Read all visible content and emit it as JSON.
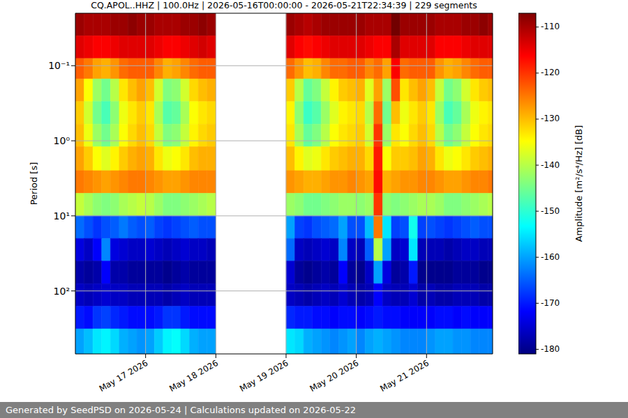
{
  "chart_data": {
    "type": "heatmap",
    "title": "CQ.APOL..HHZ | 100.0Hz | 2026-05-16T00:00:00 - 2026-05-21T22:34:39 | 229 segments",
    "y_label": "Period [s]",
    "log": "y",
    "grid": true,
    "xlim": [
      0,
      142.58
    ],
    "ylim": [
      0.02,
      690
    ],
    "xticks": [
      {
        "value": 24,
        "label": "May 17 2026"
      },
      {
        "value": 48,
        "label": "May 18 2026"
      },
      {
        "value": 72,
        "label": "May 19 2026"
      },
      {
        "value": 96,
        "label": "May 20 2026"
      },
      {
        "value": 120,
        "label": "May 21 2026"
      }
    ],
    "yticks": [
      {
        "value": 0.1,
        "label": "10⁻¹"
      },
      {
        "value": 1,
        "label": "10⁰"
      },
      {
        "value": 10,
        "label": "10¹"
      },
      {
        "value": 100,
        "label": "10²"
      }
    ],
    "x": [
      0,
      3,
      6,
      9,
      12,
      15,
      18,
      21,
      24,
      27,
      30,
      33,
      36,
      39,
      42,
      45,
      48,
      51,
      54,
      57,
      60,
      63,
      66,
      69,
      72,
      75,
      78,
      81,
      84,
      87,
      90,
      93,
      96,
      99,
      102,
      105,
      108,
      111,
      114,
      117,
      120,
      123,
      126,
      129,
      132,
      135,
      138,
      141
    ],
    "y_bins": [
      0.02,
      0.04,
      0.08,
      0.15,
      0.3,
      0.6,
      1.2,
      2.5,
      5,
      10,
      20,
      40,
      80,
      160,
      320,
      690
    ],
    "z": [
      [
        -109,
        -110,
        -110,
        -110,
        -109,
        -109,
        -108,
        -109,
        -109,
        -110,
        -110,
        -110,
        -109,
        -109,
        -108,
        -109,
        null,
        null,
        null,
        null,
        null,
        null,
        null,
        null,
        -109,
        -110,
        -111,
        -110,
        -109,
        -109,
        -109,
        -109,
        -109,
        -110,
        -110,
        -110,
        -106,
        -109,
        -109,
        -109,
        -109,
        -110,
        -110,
        -110,
        -109,
        -109,
        -108,
        -109
      ],
      [
        -114,
        -115,
        -116,
        -116,
        -115,
        -114,
        -114,
        -114,
        -114,
        -115,
        -116,
        -116,
        -115,
        -114,
        -113,
        -114,
        null,
        null,
        null,
        null,
        null,
        null,
        null,
        null,
        -114,
        -116,
        -117,
        -116,
        -115,
        -114,
        -114,
        -114,
        -114,
        -115,
        -116,
        -116,
        -110,
        -114,
        -114,
        -114,
        -114,
        -116,
        -116,
        -116,
        -115,
        -114,
        -114,
        -114
      ],
      [
        -123,
        -125,
        -128,
        -129,
        -127,
        -124,
        -123,
        -123,
        -123,
        -126,
        -129,
        -128,
        -126,
        -124,
        -123,
        -123,
        null,
        null,
        null,
        null,
        null,
        null,
        null,
        null,
        -124,
        -127,
        -130,
        -129,
        -126,
        -124,
        -124,
        -123,
        -123,
        -126,
        -124,
        -128,
        -116,
        -124,
        -123,
        -123,
        -123,
        -127,
        -129,
        -128,
        -126,
        -124,
        -123,
        -123
      ],
      [
        -128,
        -135,
        -142,
        -145,
        -140,
        -133,
        -130,
        -128,
        -130,
        -138,
        -144,
        -143,
        -138,
        -132,
        -130,
        -129,
        null,
        null,
        null,
        null,
        null,
        null,
        null,
        null,
        -131,
        -140,
        -146,
        -144,
        -139,
        -134,
        -131,
        -130,
        -129,
        -137,
        -128,
        -142,
        -122,
        -133,
        -130,
        -128,
        -130,
        -139,
        -145,
        -143,
        -138,
        -133,
        -131,
        -130
      ],
      [
        -131,
        -138,
        -145,
        -148,
        -143,
        -136,
        -133,
        -131,
        -133,
        -141,
        -147,
        -146,
        -141,
        -135,
        -133,
        -132,
        null,
        null,
        null,
        null,
        null,
        null,
        null,
        null,
        -134,
        -143,
        -149,
        -147,
        -142,
        -137,
        -134,
        -133,
        -132,
        -140,
        -124,
        -145,
        -130,
        -136,
        -133,
        -131,
        -133,
        -142,
        -148,
        -146,
        -141,
        -136,
        -134,
        -133
      ],
      [
        -130,
        -136,
        -142,
        -145,
        -141,
        -135,
        -132,
        -130,
        -132,
        -139,
        -144,
        -143,
        -139,
        -134,
        -132,
        -131,
        null,
        null,
        null,
        null,
        null,
        null,
        null,
        null,
        -133,
        -141,
        -146,
        -144,
        -140,
        -135,
        -133,
        -132,
        -131,
        -138,
        -120,
        -142,
        -133,
        -135,
        -132,
        -130,
        -132,
        -140,
        -145,
        -143,
        -139,
        -135,
        -133,
        -132
      ],
      [
        -128,
        -131,
        -135,
        -137,
        -134,
        -131,
        -129,
        -128,
        -129,
        -133,
        -136,
        -135,
        -133,
        -130,
        -129,
        -129,
        null,
        null,
        null,
        null,
        null,
        null,
        null,
        null,
        -130,
        -134,
        -137,
        -136,
        -133,
        -131,
        -130,
        -129,
        -129,
        -132,
        -118,
        -135,
        -131,
        -131,
        -130,
        -128,
        -129,
        -133,
        -136,
        -135,
        -133,
        -131,
        -130,
        -129
      ],
      [
        -125,
        -126,
        -127,
        -128,
        -127,
        -126,
        -125,
        -125,
        -126,
        -127,
        -128,
        -128,
        -127,
        -126,
        -126,
        -126,
        null,
        null,
        null,
        null,
        null,
        null,
        null,
        null,
        -127,
        -128,
        -129,
        -129,
        -128,
        -127,
        -127,
        -126,
        -127,
        -128,
        -117,
        -129,
        -128,
        -127,
        -127,
        -126,
        -126,
        -127,
        -128,
        -128,
        -127,
        -126,
        -126,
        -125
      ],
      [
        -139,
        -141,
        -143,
        -144,
        -143,
        -141,
        -140,
        -139,
        -140,
        -142,
        -144,
        -144,
        -143,
        -142,
        -141,
        -140,
        null,
        null,
        null,
        null,
        null,
        null,
        null,
        null,
        -142,
        -143,
        -145,
        -145,
        -144,
        -143,
        -142,
        -142,
        -143,
        -142,
        -120,
        -143,
        -144,
        -143,
        -142,
        -141,
        -141,
        -142,
        -144,
        -144,
        -143,
        -142,
        -141,
        -140
      ],
      [
        -164,
        -166,
        -168,
        -166,
        -165,
        -163,
        -165,
        -166,
        -165,
        -167,
        -168,
        -167,
        -166,
        -165,
        -166,
        -166,
        null,
        null,
        null,
        null,
        null,
        null,
        null,
        null,
        -160,
        -167,
        -168,
        -166,
        -165,
        -164,
        -160,
        -166,
        -166,
        -158,
        -125,
        -155,
        -167,
        -166,
        -152,
        -167,
        -166,
        -167,
        -168,
        -167,
        -166,
        -165,
        -166,
        -166
      ],
      [
        -174,
        -176,
        -172,
        -162,
        -174,
        -175,
        -176,
        -176,
        -175,
        -176,
        -177,
        -176,
        -175,
        -176,
        -176,
        -177,
        null,
        null,
        null,
        null,
        null,
        null,
        null,
        null,
        -164,
        -176,
        -177,
        -176,
        -175,
        -176,
        -162,
        -176,
        -177,
        -165,
        -140,
        -160,
        -176,
        -175,
        -155,
        -177,
        -177,
        -177,
        -178,
        -177,
        -176,
        -176,
        -177,
        -177
      ],
      [
        -178,
        -179,
        -178,
        -172,
        -178,
        -178,
        -179,
        -179,
        -179,
        -179,
        -180,
        -179,
        -178,
        -179,
        -179,
        -179,
        null,
        null,
        null,
        null,
        null,
        null,
        null,
        null,
        -175,
        -179,
        -180,
        -179,
        -178,
        -179,
        -172,
        -179,
        -180,
        -176,
        -160,
        -174,
        -179,
        -178,
        -170,
        -180,
        -180,
        -180,
        -180,
        -179,
        -179,
        -179,
        -180,
        -180
      ],
      [
        -176,
        -177,
        -176,
        -175,
        -176,
        -176,
        -177,
        -177,
        -177,
        -177,
        -178,
        -177,
        -176,
        -177,
        -177,
        -177,
        null,
        null,
        null,
        null,
        null,
        null,
        null,
        null,
        -176,
        -177,
        -178,
        -177,
        -176,
        -177,
        -175,
        -177,
        -178,
        -177,
        -172,
        -176,
        -177,
        -177,
        -175,
        -178,
        -177,
        -178,
        -178,
        -177,
        -177,
        -177,
        -178,
        -178
      ],
      [
        -170,
        -171,
        -168,
        -167,
        -169,
        -170,
        -171,
        -171,
        -171,
        -170,
        -168,
        -168,
        -170,
        -171,
        -171,
        -171,
        null,
        null,
        null,
        null,
        null,
        null,
        null,
        null,
        -169,
        -170,
        -170,
        -171,
        -171,
        -172,
        -171,
        -171,
        -172,
        -171,
        -170,
        -171,
        -171,
        -172,
        -172,
        -172,
        -172,
        -171,
        -171,
        -172,
        -171,
        -172,
        -172,
        -172
      ],
      [
        -160,
        -158,
        -155,
        -154,
        -156,
        -159,
        -160,
        -161,
        -160,
        -157,
        -154,
        -153,
        -156,
        -159,
        -160,
        -160,
        null,
        null,
        null,
        null,
        null,
        null,
        null,
        null,
        -155,
        -156,
        -159,
        -160,
        -161,
        -162,
        -161,
        -160,
        -162,
        -160,
        -159,
        -160,
        -161,
        -162,
        -162,
        -162,
        -161,
        -160,
        -160,
        -161,
        -161,
        -162,
        -162,
        -162
      ]
    ],
    "colorbar": {
      "label": "Amplitude [m²/s⁴/Hz] [dB]",
      "range": [
        -181,
        -107
      ],
      "ticks": [
        -110,
        -120,
        -130,
        -140,
        -150,
        -160,
        -170,
        -180
      ]
    }
  },
  "footer": "Generated by SeedPSD on 2026-05-24 | Calculations updated on 2026-05-22"
}
